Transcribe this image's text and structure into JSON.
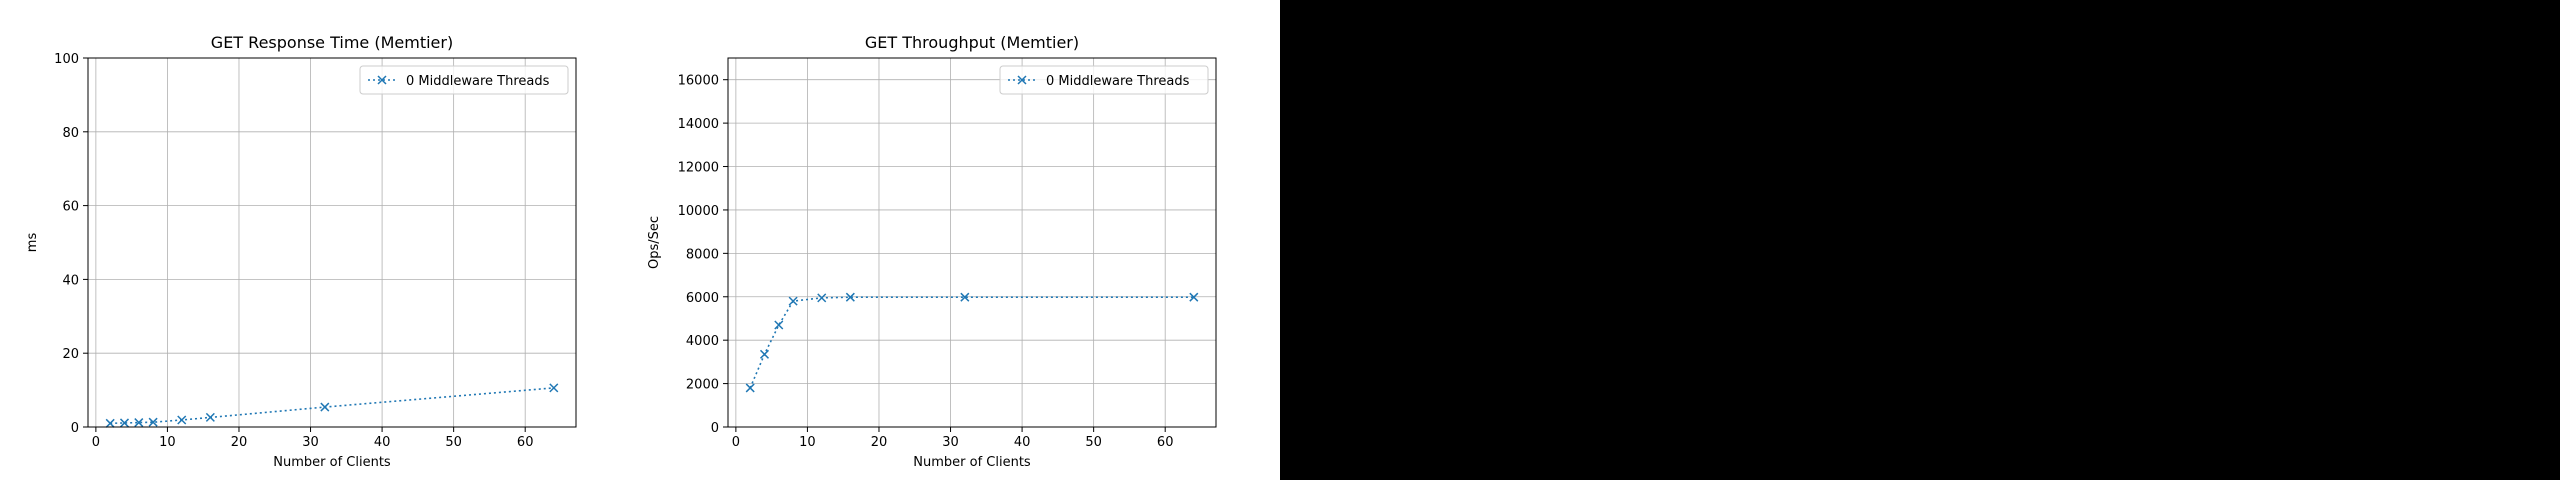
{
  "chart_data": [
    {
      "type": "line",
      "title": "GET Response Time (Memtier)",
      "xlabel": "Number of Clients",
      "ylabel": "ms",
      "xlim": [
        -1.1,
        67.1
      ],
      "ylim": [
        0,
        100
      ],
      "xticks": [
        0,
        10,
        20,
        30,
        40,
        50,
        60
      ],
      "yticks": [
        0,
        20,
        40,
        60,
        80,
        100
      ],
      "grid": true,
      "legend": "top-right",
      "series": [
        {
          "name": "0 Middleware Threads",
          "color": "#1f77b4",
          "x": [
            2,
            4,
            6,
            8,
            12,
            16,
            32,
            64
          ],
          "y": [
            1.0,
            1.1,
            1.2,
            1.3,
            1.9,
            2.6,
            5.4,
            10.6
          ]
        }
      ]
    },
    {
      "type": "line",
      "title": "GET Throughput (Memtier)",
      "xlabel": "Number of Clients",
      "ylabel": "Ops/Sec",
      "xlim": [
        -1.1,
        67.1
      ],
      "ylim": [
        0,
        17000
      ],
      "xticks": [
        0,
        10,
        20,
        30,
        40,
        50,
        60
      ],
      "yticks": [
        0,
        2000,
        4000,
        6000,
        8000,
        10000,
        12000,
        14000,
        16000
      ],
      "grid": true,
      "legend": "top-right",
      "series": [
        {
          "name": "0 Middleware Threads",
          "color": "#1f77b4",
          "x": [
            2,
            4,
            6,
            8,
            12,
            16,
            32,
            64
          ],
          "y": [
            1800,
            3350,
            4700,
            5800,
            5950,
            5980,
            5980,
            5980
          ]
        }
      ]
    }
  ]
}
